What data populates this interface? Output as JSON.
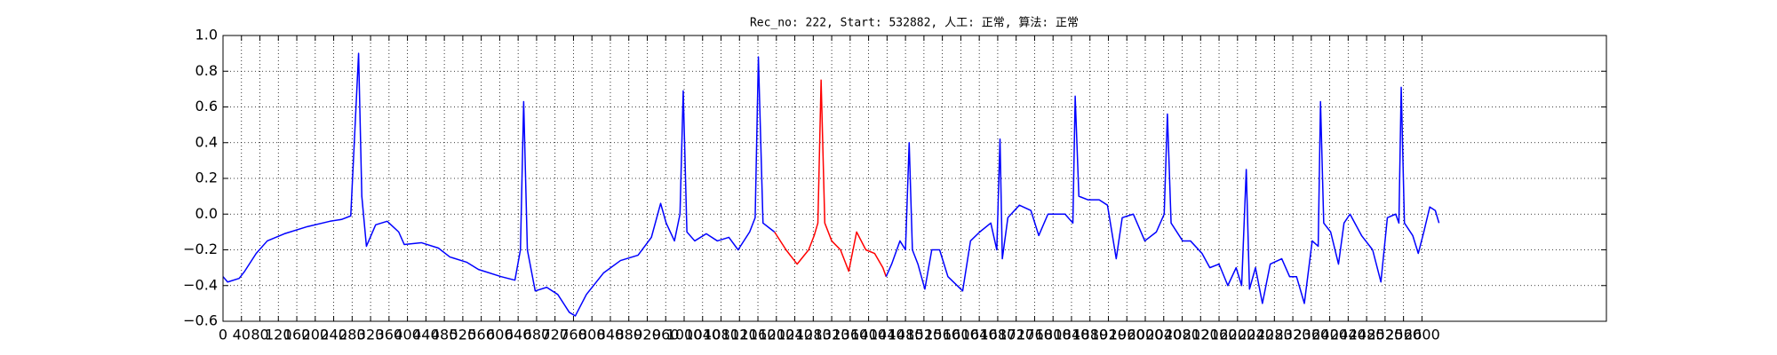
{
  "chart_data": {
    "type": "line",
    "title": "Rec_no: 222, Start: 532882, 人工: 正常, 算法: 正常",
    "xlim": [
      0,
      3000
    ],
    "xticks": [
      0,
      40,
      80,
      120,
      160,
      200,
      240,
      280,
      320,
      360,
      400,
      440,
      480,
      520,
      560,
      600,
      640,
      680,
      720,
      760,
      800,
      840,
      880,
      920,
      960,
      1000,
      1040,
      1080,
      1120,
      1160,
      1200,
      1240,
      1280,
      1320,
      1360,
      1400,
      1440,
      1480,
      1520,
      1560,
      1600,
      1640,
      1680,
      1720,
      1760,
      1800,
      1840,
      1880,
      1920,
      1960,
      2000,
      2040,
      2080,
      2120,
      2160,
      2200,
      2240,
      2280,
      2320,
      2360,
      2400,
      2440,
      2480,
      2520,
      2560,
      2600
    ],
    "ylim": [
      -0.6,
      1.0
    ],
    "yticks": [
      {
        "value": -0.6,
        "label": "−0.6"
      },
      {
        "value": -0.4,
        "label": "−0.4"
      },
      {
        "value": -0.2,
        "label": "−0.2"
      },
      {
        "value": 0,
        "label": "0.0"
      },
      {
        "value": 0.2,
        "label": "0.2"
      },
      {
        "value": 0.4,
        "label": "0.4"
      },
      {
        "value": 0.6,
        "label": "0.6"
      },
      {
        "value": 0.8,
        "label": "0.8"
      },
      {
        "value": 1.0,
        "label": "1.0"
      }
    ],
    "grid": true,
    "series": [
      {
        "color": "#0000ff",
        "x": [
          0,
          10,
          35,
          47,
          72,
          96,
          133,
          183,
          232,
          257,
          277,
          294,
          301,
          311,
          331,
          356,
          381,
          393,
          430,
          467,
          492,
          529,
          554,
          603,
          633,
          645,
          652,
          660,
          677,
          702,
          726,
          751,
          764,
          788,
          825,
          862,
          900,
          929,
          949,
          961,
          979,
          991,
          998,
          1006,
          1023,
          1048,
          1072,
          1097,
          1117,
          1142,
          1154,
          1161,
          1171,
          1186,
          1196
        ],
        "values": [
          -0.35,
          -0.38,
          -0.36,
          -0.32,
          -0.22,
          -0.15,
          -0.11,
          -0.07,
          -0.04,
          -0.03,
          -0.01,
          0.9,
          0.1,
          -0.18,
          -0.06,
          -0.04,
          -0.1,
          -0.17,
          -0.16,
          -0.19,
          -0.24,
          -0.27,
          -0.31,
          -0.35,
          -0.37,
          -0.2,
          0.63,
          -0.2,
          -0.43,
          -0.41,
          -0.45,
          -0.55,
          -0.57,
          -0.45,
          -0.33,
          -0.26,
          -0.23,
          -0.13,
          0.06,
          -0.05,
          -0.15,
          0.0,
          0.69,
          -0.1,
          -0.15,
          -0.11,
          -0.15,
          -0.13,
          -0.2,
          -0.1,
          -0.02,
          0.88,
          -0.05,
          -0.08,
          -0.1
        ]
      },
      {
        "color": "#ff0000",
        "x": [
          1196,
          1221,
          1245,
          1270,
          1282,
          1290,
          1297,
          1305,
          1320,
          1339,
          1357,
          1374,
          1394,
          1413,
          1431,
          1438
        ],
        "values": [
          -0.1,
          -0.2,
          -0.28,
          -0.2,
          -0.12,
          -0.05,
          0.75,
          -0.05,
          -0.15,
          -0.2,
          -0.32,
          -0.1,
          -0.2,
          -0.22,
          -0.3,
          -0.35
        ]
      },
      {
        "color": "#0000ff",
        "x": [
          1438,
          1450,
          1468,
          1480,
          1488,
          1495,
          1507,
          1522,
          1537,
          1554,
          1572,
          1604,
          1621,
          1641,
          1665,
          1678,
          1685,
          1690,
          1702,
          1727,
          1752,
          1769,
          1789,
          1826,
          1843,
          1848,
          1856,
          1876,
          1900,
          1918,
          1937,
          1950,
          1974,
          1999,
          2024,
          2041,
          2048,
          2056,
          2081,
          2098,
          2123,
          2140,
          2160,
          2179,
          2197,
          2209,
          2219,
          2226,
          2239,
          2254,
          2271,
          2296,
          2313,
          2328,
          2345,
          2362,
          2375,
          2380,
          2387,
          2402,
          2419,
          2431,
          2444,
          2469,
          2493,
          2511,
          2525,
          2543,
          2550,
          2555,
          2562,
          2580,
          2592,
          2604,
          2617,
          2629,
          2637
        ],
        "values": [
          -0.35,
          -0.28,
          -0.15,
          -0.2,
          0.4,
          -0.2,
          -0.28,
          -0.42,
          -0.2,
          -0.2,
          -0.35,
          -0.43,
          -0.15,
          -0.1,
          -0.05,
          -0.2,
          0.42,
          -0.25,
          -0.02,
          0.05,
          0.02,
          -0.12,
          0.0,
          0.0,
          -0.05,
          0.66,
          0.1,
          0.08,
          0.08,
          0.05,
          -0.25,
          -0.02,
          0.0,
          -0.15,
          -0.1,
          0.0,
          0.56,
          -0.05,
          -0.15,
          -0.15,
          -0.22,
          -0.3,
          -0.28,
          -0.4,
          -0.3,
          -0.4,
          0.25,
          -0.42,
          -0.3,
          -0.5,
          -0.28,
          -0.25,
          -0.35,
          -0.35,
          -0.5,
          -0.15,
          -0.18,
          0.63,
          -0.05,
          -0.1,
          -0.28,
          -0.05,
          0.0,
          -0.12,
          -0.2,
          -0.38,
          -0.02,
          0.0,
          -0.05,
          0.71,
          -0.05,
          -0.12,
          -0.22,
          -0.1,
          0.04,
          0.02,
          -0.05
        ]
      }
    ]
  }
}
